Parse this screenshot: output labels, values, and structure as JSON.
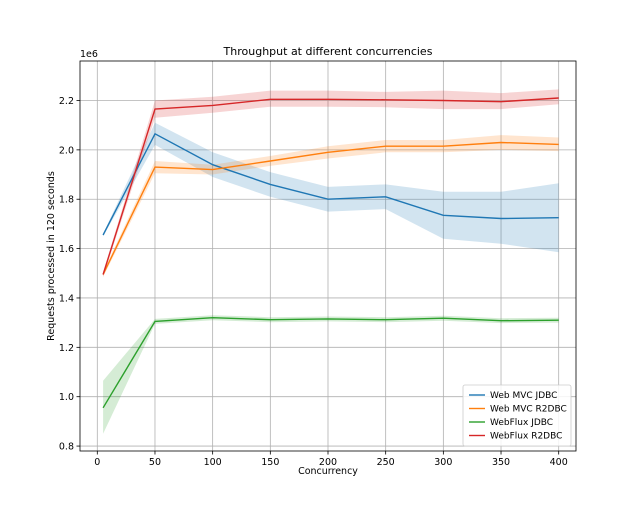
{
  "chart_data": {
    "type": "line",
    "title": "Throughput at different concurrencies",
    "xlabel": "Concurrency",
    "ylabel": "Requests processed in 120 seconds",
    "y_offset_label": "1e6",
    "xlim": [
      -15,
      415
    ],
    "ylim": [
      0.78,
      2.36
    ],
    "x_ticks": [
      0,
      50,
      100,
      150,
      200,
      250,
      300,
      350,
      400
    ],
    "y_ticks": [
      0.8,
      1.0,
      1.2,
      1.4,
      1.6,
      1.8,
      2.0,
      2.2
    ],
    "y_tick_labels": [
      "0.8",
      "1.0",
      "1.2",
      "1.4",
      "1.6",
      "1.8",
      "2.0",
      "2.2"
    ],
    "grid": true,
    "legend_position": "lower-right",
    "x": [
      5,
      50,
      100,
      150,
      200,
      250,
      300,
      350,
      400
    ],
    "series": [
      {
        "name": "Web MVC JDBC",
        "color": "#1f77b4",
        "values": [
          1.655,
          2.065,
          1.94,
          1.86,
          1.8,
          1.81,
          1.735,
          1.722,
          1.725
        ],
        "band_low": [
          1.65,
          2.02,
          1.89,
          1.81,
          1.75,
          1.76,
          1.64,
          1.62,
          1.585
        ],
        "band_high": [
          1.66,
          2.11,
          1.99,
          1.91,
          1.85,
          1.86,
          1.83,
          1.83,
          1.865
        ]
      },
      {
        "name": "Web MVC R2DBC",
        "color": "#ff7f0e",
        "values": [
          1.495,
          1.93,
          1.92,
          1.955,
          1.99,
          2.015,
          2.015,
          2.03,
          2.022
        ],
        "band_low": [
          1.485,
          1.905,
          1.9,
          1.935,
          1.965,
          1.99,
          1.99,
          2.0,
          1.995
        ],
        "band_high": [
          1.505,
          1.955,
          1.94,
          1.975,
          2.015,
          2.04,
          2.04,
          2.06,
          2.05
        ]
      },
      {
        "name": "WebFlux JDBC",
        "color": "#2ca02c",
        "values": [
          0.955,
          1.305,
          1.32,
          1.312,
          1.315,
          1.312,
          1.318,
          1.308,
          1.31
        ],
        "band_low": [
          0.85,
          1.295,
          1.31,
          1.302,
          1.305,
          1.302,
          1.308,
          1.298,
          1.3
        ],
        "band_high": [
          1.065,
          1.315,
          1.33,
          1.322,
          1.325,
          1.322,
          1.328,
          1.318,
          1.32
        ]
      },
      {
        "name": "WebFlux R2DBC",
        "color": "#d62728",
        "values": [
          1.495,
          2.165,
          2.18,
          2.205,
          2.205,
          2.203,
          2.2,
          2.195,
          2.21
        ],
        "band_low": [
          1.485,
          2.13,
          2.15,
          2.175,
          2.175,
          2.173,
          2.165,
          2.165,
          2.185
        ],
        "band_high": [
          1.505,
          2.2,
          2.215,
          2.24,
          2.24,
          2.235,
          2.24,
          2.23,
          2.245
        ]
      }
    ]
  }
}
